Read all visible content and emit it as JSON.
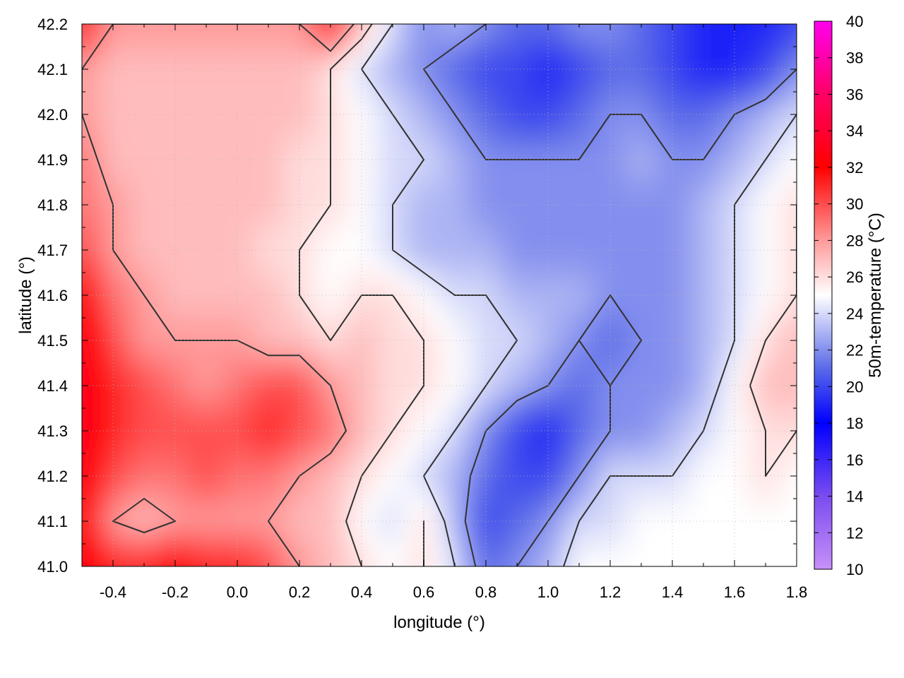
{
  "chart_data": {
    "type": "heatmap",
    "title": "",
    "xlabel": "longitude (°)",
    "ylabel": "latitude (°)",
    "colorbar_label": "50m-temperature (°C)",
    "xlim": [
      -0.5,
      1.8
    ],
    "ylim": [
      41.0,
      42.2
    ],
    "x_ticks": [
      {
        "value": -0.4,
        "label": "-0.4"
      },
      {
        "value": -0.2,
        "label": "-0.2"
      },
      {
        "value": 0.0,
        "label": "0.0"
      },
      {
        "value": 0.2,
        "label": "0.2"
      },
      {
        "value": 0.4,
        "label": "0.4"
      },
      {
        "value": 0.6,
        "label": "0.6"
      },
      {
        "value": 0.8,
        "label": "0.8"
      },
      {
        "value": 1.0,
        "label": "1.0"
      },
      {
        "value": 1.2,
        "label": "1.2"
      },
      {
        "value": 1.4,
        "label": "1.4"
      },
      {
        "value": 1.6,
        "label": "1.6"
      },
      {
        "value": 1.8,
        "label": "1.8"
      }
    ],
    "y_ticks": [
      {
        "value": 41.0,
        "label": "41.0"
      },
      {
        "value": 41.1,
        "label": "41.1"
      },
      {
        "value": 41.2,
        "label": "41.2"
      },
      {
        "value": 41.3,
        "label": "41.3"
      },
      {
        "value": 41.4,
        "label": "41.4"
      },
      {
        "value": 41.5,
        "label": "41.5"
      },
      {
        "value": 41.6,
        "label": "41.6"
      },
      {
        "value": 41.7,
        "label": "41.7"
      },
      {
        "value": 41.8,
        "label": "41.8"
      },
      {
        "value": 41.9,
        "label": "41.9"
      },
      {
        "value": 42.0,
        "label": "42.0"
      },
      {
        "value": 42.1,
        "label": "42.1"
      },
      {
        "value": 42.2,
        "label": "42.2"
      }
    ],
    "colorbar": {
      "range": [
        10,
        40
      ],
      "ticks": [
        {
          "value": 10,
          "label": "10"
        },
        {
          "value": 12,
          "label": "12"
        },
        {
          "value": 14,
          "label": "14"
        },
        {
          "value": 16,
          "label": "16"
        },
        {
          "value": 18,
          "label": "18"
        },
        {
          "value": 20,
          "label": "20"
        },
        {
          "value": 22,
          "label": "22"
        },
        {
          "value": 24,
          "label": "24"
        },
        {
          "value": 26,
          "label": "26"
        },
        {
          "value": 28,
          "label": "28"
        },
        {
          "value": 30,
          "label": "30"
        },
        {
          "value": 32,
          "label": "32"
        },
        {
          "value": 34,
          "label": "34"
        },
        {
          "value": 36,
          "label": "36"
        },
        {
          "value": 38,
          "label": "38"
        },
        {
          "value": 40,
          "label": "40"
        }
      ],
      "color_stops": [
        {
          "value": 10,
          "color": "#c890f8"
        },
        {
          "value": 14,
          "color": "#7a4cf0"
        },
        {
          "value": 18,
          "color": "#0000ff"
        },
        {
          "value": 21,
          "color": "#5a6ae8"
        },
        {
          "value": 25,
          "color": "#ffffff"
        },
        {
          "value": 28,
          "color": "#ff9a9a"
        },
        {
          "value": 32,
          "color": "#ff0000"
        },
        {
          "value": 36,
          "color": "#ff0066"
        },
        {
          "value": 40,
          "color": "#ff00ee"
        }
      ]
    },
    "temperature_field": {
      "lon": [
        -0.5,
        -0.4,
        -0.3,
        -0.2,
        -0.1,
        0.0,
        0.1,
        0.2,
        0.3,
        0.4,
        0.5,
        0.6,
        0.7,
        0.8,
        0.9,
        1.0,
        1.1,
        1.2,
        1.3,
        1.4,
        1.5,
        1.6,
        1.7,
        1.8
      ],
      "lat": [
        42.2,
        42.1,
        42.0,
        41.9,
        41.8,
        41.7,
        41.6,
        41.5,
        41.4,
        41.3,
        41.2,
        41.1,
        41.0
      ],
      "values": [
        [
          31,
          28,
          28,
          28,
          28,
          28,
          28,
          28,
          31,
          27,
          24,
          22,
          23,
          22,
          21,
          21,
          22,
          22,
          21,
          20,
          19,
          19,
          19,
          20
        ],
        [
          28,
          27,
          27,
          27,
          27,
          27,
          27,
          27,
          26,
          24,
          23,
          22,
          21,
          20,
          20,
          19,
          20,
          21,
          21,
          20,
          19,
          19,
          20,
          22
        ],
        [
          28,
          27,
          27,
          27,
          27,
          27,
          27,
          27,
          26,
          25,
          24,
          23,
          22,
          21,
          20,
          20,
          21,
          22,
          22,
          21,
          21,
          22,
          23,
          24
        ],
        [
          29,
          27,
          27,
          27,
          27,
          27,
          27,
          26,
          26,
          25,
          24,
          24,
          23,
          22,
          22,
          22,
          22,
          22,
          23,
          22,
          22,
          23,
          24,
          25
        ],
        [
          29,
          28,
          27,
          27,
          27,
          27,
          27,
          26,
          26,
          25,
          24,
          23,
          23,
          22,
          22,
          22,
          22,
          22,
          22,
          22,
          23,
          24,
          25,
          26
        ],
        [
          30,
          28,
          27,
          27,
          27,
          27,
          26,
          26,
          25,
          25,
          24,
          23,
          23,
          23,
          22,
          22,
          22,
          22,
          22,
          22,
          23,
          24,
          25,
          26
        ],
        [
          32,
          29,
          28,
          27,
          27,
          27,
          27,
          26,
          25,
          26,
          26,
          25,
          24,
          24,
          23,
          23,
          23,
          22,
          22,
          22,
          23,
          24,
          25,
          26
        ],
        [
          33,
          30,
          28,
          28,
          28,
          28,
          27,
          27,
          26,
          27,
          26,
          26,
          25,
          24,
          24,
          23,
          22,
          21,
          22,
          22,
          23,
          24,
          26,
          27
        ],
        [
          33,
          31,
          30,
          29,
          28,
          29,
          30,
          30,
          28,
          27,
          26,
          26,
          25,
          24,
          23,
          22,
          21,
          22,
          22,
          22,
          23,
          25,
          27,
          27
        ],
        [
          33,
          31,
          30,
          30,
          30,
          30,
          31,
          30,
          29,
          27,
          26,
          25,
          24,
          22,
          20,
          19,
          21,
          22,
          22,
          23,
          24,
          25,
          26,
          26
        ],
        [
          33,
          30,
          29,
          29,
          30,
          29,
          29,
          28,
          27,
          26,
          25,
          24,
          23,
          21,
          20,
          20,
          22,
          24,
          24,
          24,
          25,
          25,
          26,
          25
        ],
        [
          32,
          28,
          27,
          28,
          28,
          28,
          28,
          27,
          27,
          25,
          24,
          26,
          23,
          20,
          21,
          22,
          24,
          24,
          25,
          25,
          25,
          25,
          25,
          25
        ],
        [
          33,
          31,
          31,
          32,
          31,
          31,
          30,
          28,
          27,
          26,
          25,
          26,
          24,
          21,
          22,
          23,
          25,
          25,
          25,
          25,
          25,
          25,
          25,
          25
        ]
      ]
    },
    "contour_levels": [
      22,
      24,
      26,
      28
    ]
  }
}
